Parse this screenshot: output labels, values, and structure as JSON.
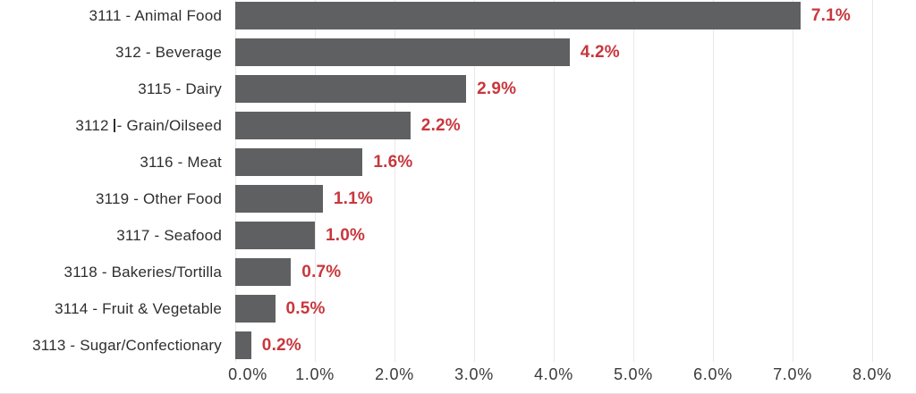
{
  "chart_data": {
    "type": "bar",
    "orientation": "horizontal",
    "categories": [
      "3111 - Animal Food",
      "312 - Beverage",
      "3115 - Dairy",
      "3112 - Grain/Oilseed",
      "3116 - Meat",
      "3119 - Other Food",
      "3117 - Seafood",
      "3118 - Bakeries/Tortilla",
      "3114 - Fruit & Vegetable",
      "3113 - Sugar/Confectionary"
    ],
    "values": [
      7.1,
      4.2,
      2.9,
      2.2,
      1.6,
      1.1,
      1.0,
      0.7,
      0.5,
      0.2
    ],
    "value_labels": [
      "7.1%",
      "4.2%",
      "2.9%",
      "2.2%",
      "1.6%",
      "1.1%",
      "1.0%",
      "0.7%",
      "0.5%",
      "0.2%"
    ],
    "category_3_parts": [
      "3112",
      "- Grain/Oilseed"
    ],
    "x_tick_labels": [
      "0.0%",
      "1.0%",
      "2.0%",
      "3.0%",
      "4.0%",
      "5.0%",
      "6.0%",
      "7.0%",
      "8.0%"
    ],
    "xlim": [
      0,
      8
    ],
    "grid": "vertical",
    "legend": "none",
    "colors": {
      "bar": "#5f6062",
      "value_label": "#c8373e",
      "category_label": "#2d2e30",
      "tick_label": "#3a3a3c",
      "gridline": "#e8e8ea",
      "background": "#ffffff"
    },
    "notes": "thin text-cursor artifact visible inside the '3112 - Grain/Oilseed' category label"
  }
}
